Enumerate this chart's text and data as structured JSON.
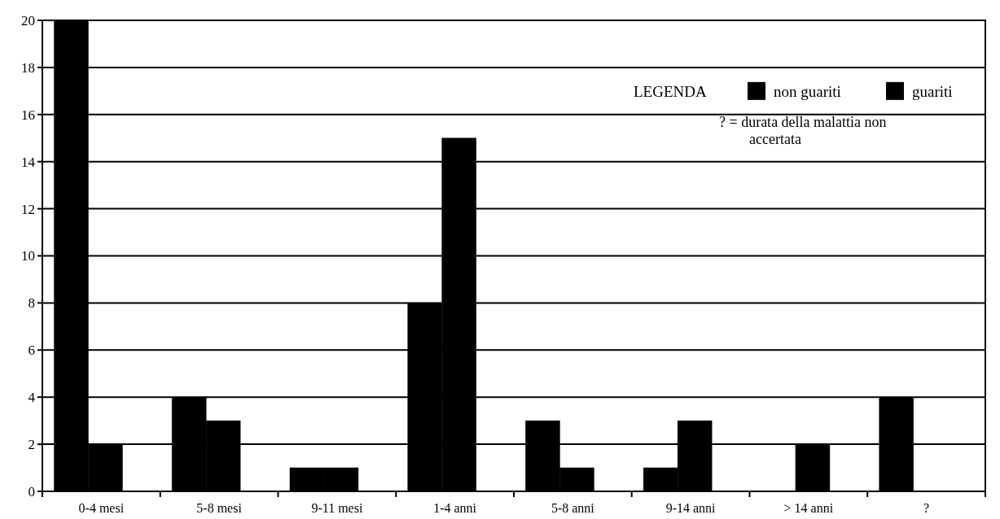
{
  "chart_data": {
    "type": "bar",
    "categories": [
      "0-4 mesi",
      "5-8 mesi",
      "9-11 mesi",
      "1-4 anni",
      "5-8 anni",
      "9-14 anni",
      "> 14 anni",
      "?"
    ],
    "series": [
      {
        "name": "non guariti",
        "color": "#000000",
        "values": [
          20,
          4,
          1,
          8,
          3,
          1,
          0,
          4
        ]
      },
      {
        "name": "guariti",
        "color": "#000000",
        "values": [
          2,
          3,
          1,
          15,
          1,
          3,
          2,
          0
        ]
      }
    ],
    "ylim": [
      0,
      20
    ],
    "yticks": [
      0,
      2,
      4,
      6,
      8,
      10,
      12,
      14,
      16,
      18,
      20
    ],
    "grid": "y",
    "legend": "top right",
    "legend_title": "LEGENDA",
    "annotations": [
      "? = durata della malattia non accertata"
    ]
  }
}
